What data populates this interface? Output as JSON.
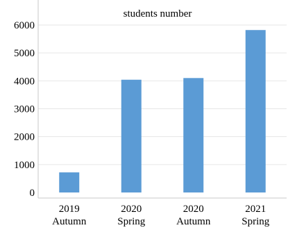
{
  "chart_data": {
    "type": "bar",
    "title": "students number",
    "categories": [
      [
        "2019",
        "Autumn"
      ],
      [
        "2020",
        "Spring"
      ],
      [
        "2020",
        "Autumn"
      ],
      [
        "2021",
        "Spring"
      ]
    ],
    "values": [
      720,
      4040,
      4100,
      5820
    ],
    "ylim": [
      0,
      6000
    ],
    "yticks": [
      0,
      1000,
      2000,
      3000,
      4000,
      5000,
      6000
    ],
    "grid": true,
    "bar_color": "#5B9BD5",
    "grid_color": "#E6E6E6",
    "axis_color": "#C8C8C8"
  }
}
